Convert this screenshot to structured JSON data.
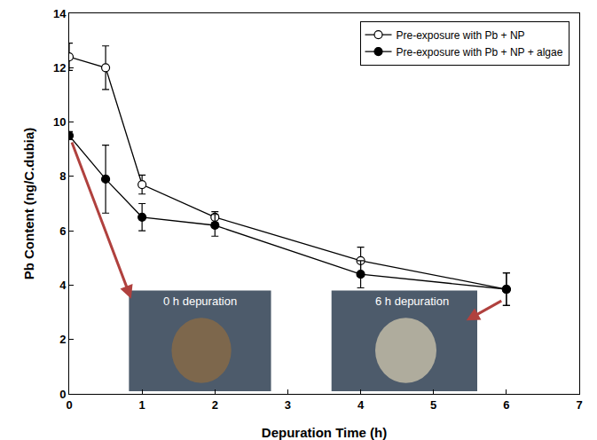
{
  "chart_data": {
    "type": "line",
    "xlabel": "Depuration Time (h)",
    "ylabel": "Pb Content (ng/C.dubia)",
    "x": [
      0,
      0.5,
      1,
      2,
      4,
      6
    ],
    "series": [
      {
        "name": "Pre-exposure with Pb + NP",
        "color": "#000000",
        "marker": "open",
        "values": [
          12.4,
          12.0,
          7.7,
          6.5,
          4.9,
          3.85
        ],
        "errors": [
          0.5,
          0.8,
          0.35,
          0.2,
          0.5,
          0.6
        ]
      },
      {
        "name": "Pre-exposure with Pb + NP + algae",
        "color": "#000000",
        "marker": "filled",
        "values": [
          9.5,
          7.9,
          6.5,
          6.2,
          4.4,
          3.85
        ],
        "errors": [
          0.15,
          1.25,
          0.5,
          0.4,
          0.5,
          0.6
        ]
      }
    ],
    "xlim": [
      0,
      7
    ],
    "ylim": [
      0,
      14
    ],
    "xticks": [
      0,
      1,
      2,
      3,
      4,
      5,
      6,
      7
    ],
    "yticks": [
      0,
      2,
      4,
      6,
      8,
      10,
      12,
      14
    ],
    "grid": false,
    "legend": "upper right",
    "annotations": [
      "0 h depuration",
      "6 h depuration"
    ]
  }
}
